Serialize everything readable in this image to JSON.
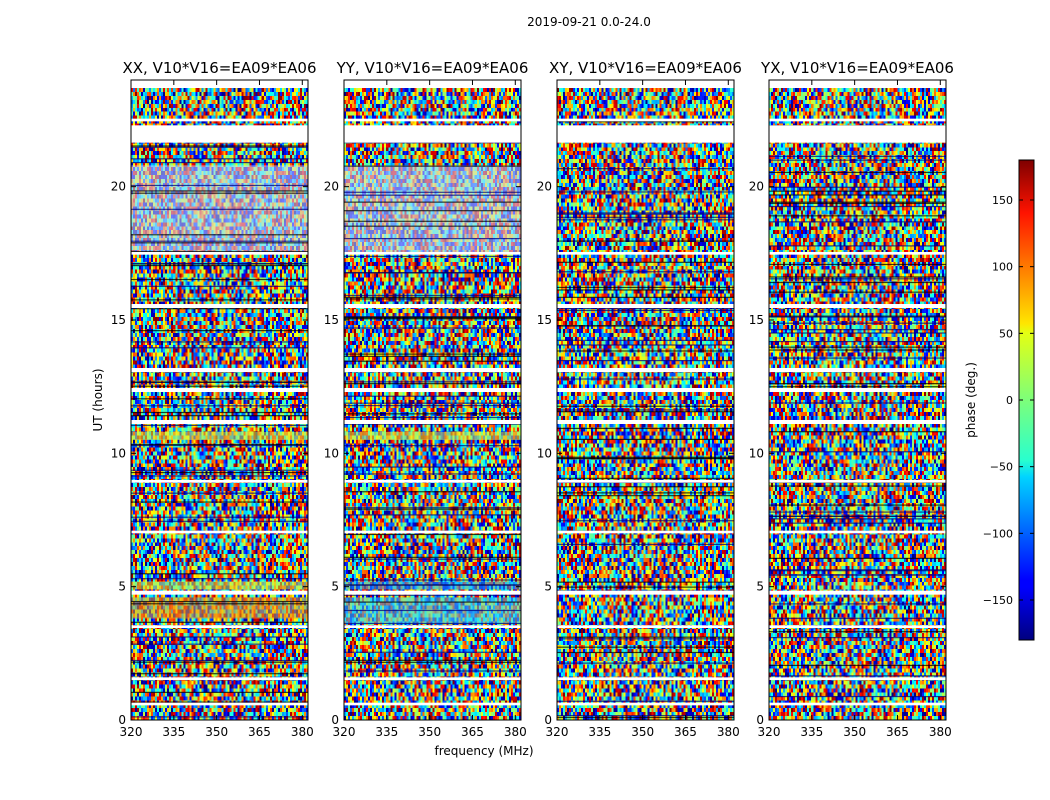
{
  "chart_data": {
    "type": "heatmap",
    "suptitle": "2019-09-21 0.0-24.0",
    "xlabel": "frequency (MHz)",
    "ylabel": "UT (hours)",
    "xlim": [
      320,
      382
    ],
    "ylim": [
      0,
      24
    ],
    "xticks": [
      320,
      335,
      350,
      365,
      380
    ],
    "yticks": [
      0,
      5,
      10,
      15,
      20
    ],
    "panels": [
      {
        "title": "XX, V10*V16=EA09*EA06",
        "tint_bands": [
          [
            3.8,
            4.6,
            "#e8a020"
          ],
          [
            4.9,
            5.2,
            "#d0f040"
          ],
          [
            10.5,
            10.8,
            "#d8f040"
          ],
          [
            17.5,
            20.8,
            "#c8d8ff"
          ]
        ]
      },
      {
        "title": "YY, V10*V16=EA09*EA06",
        "tint_bands": [
          [
            3.6,
            4.6,
            "#40d0f0"
          ],
          [
            4.9,
            5.2,
            "#20a0ff"
          ],
          [
            10.5,
            10.8,
            "#d8f040"
          ],
          [
            17.5,
            20.8,
            "#c8d8ff"
          ]
        ]
      },
      {
        "title": "XY, V10*V16=EA09*EA06",
        "tint_bands": []
      },
      {
        "title": "YX, V10*V16=EA09*EA06",
        "tint_bands": []
      }
    ],
    "gaps_hours": [
      [
        0.55,
        0.65
      ],
      [
        1.5,
        1.6
      ],
      [
        3.45,
        3.55
      ],
      [
        4.7,
        4.85
      ],
      [
        7.0,
        7.1
      ],
      [
        8.9,
        9.0
      ],
      [
        11.1,
        11.25
      ],
      [
        12.3,
        12.45
      ],
      [
        13.05,
        13.2
      ],
      [
        15.45,
        15.6
      ],
      [
        17.45,
        17.55
      ],
      [
        21.65,
        22.3
      ],
      [
        22.45,
        22.55
      ]
    ],
    "colorbar": {
      "label": "phase (deg.)",
      "range": [
        -180,
        180
      ],
      "ticks": [
        150,
        100,
        50,
        0,
        -50,
        -100,
        -150
      ],
      "colormap": "jet"
    }
  }
}
